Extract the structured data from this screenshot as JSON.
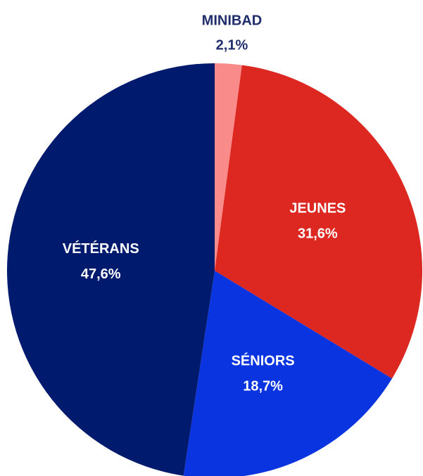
{
  "chart_data": {
    "type": "pie",
    "categories": [
      "MINIBAD",
      "JEUNES",
      "SÉNIORS",
      "VÉTÉRANS"
    ],
    "values": [
      2.1,
      31.6,
      18.7,
      47.6
    ],
    "value_labels": [
      "2,1%",
      "31,6%",
      "18,7%",
      "47,6%"
    ],
    "colors": [
      "#f98b8b",
      "#dc2820",
      "#0a34e0",
      "#001a6e"
    ]
  }
}
